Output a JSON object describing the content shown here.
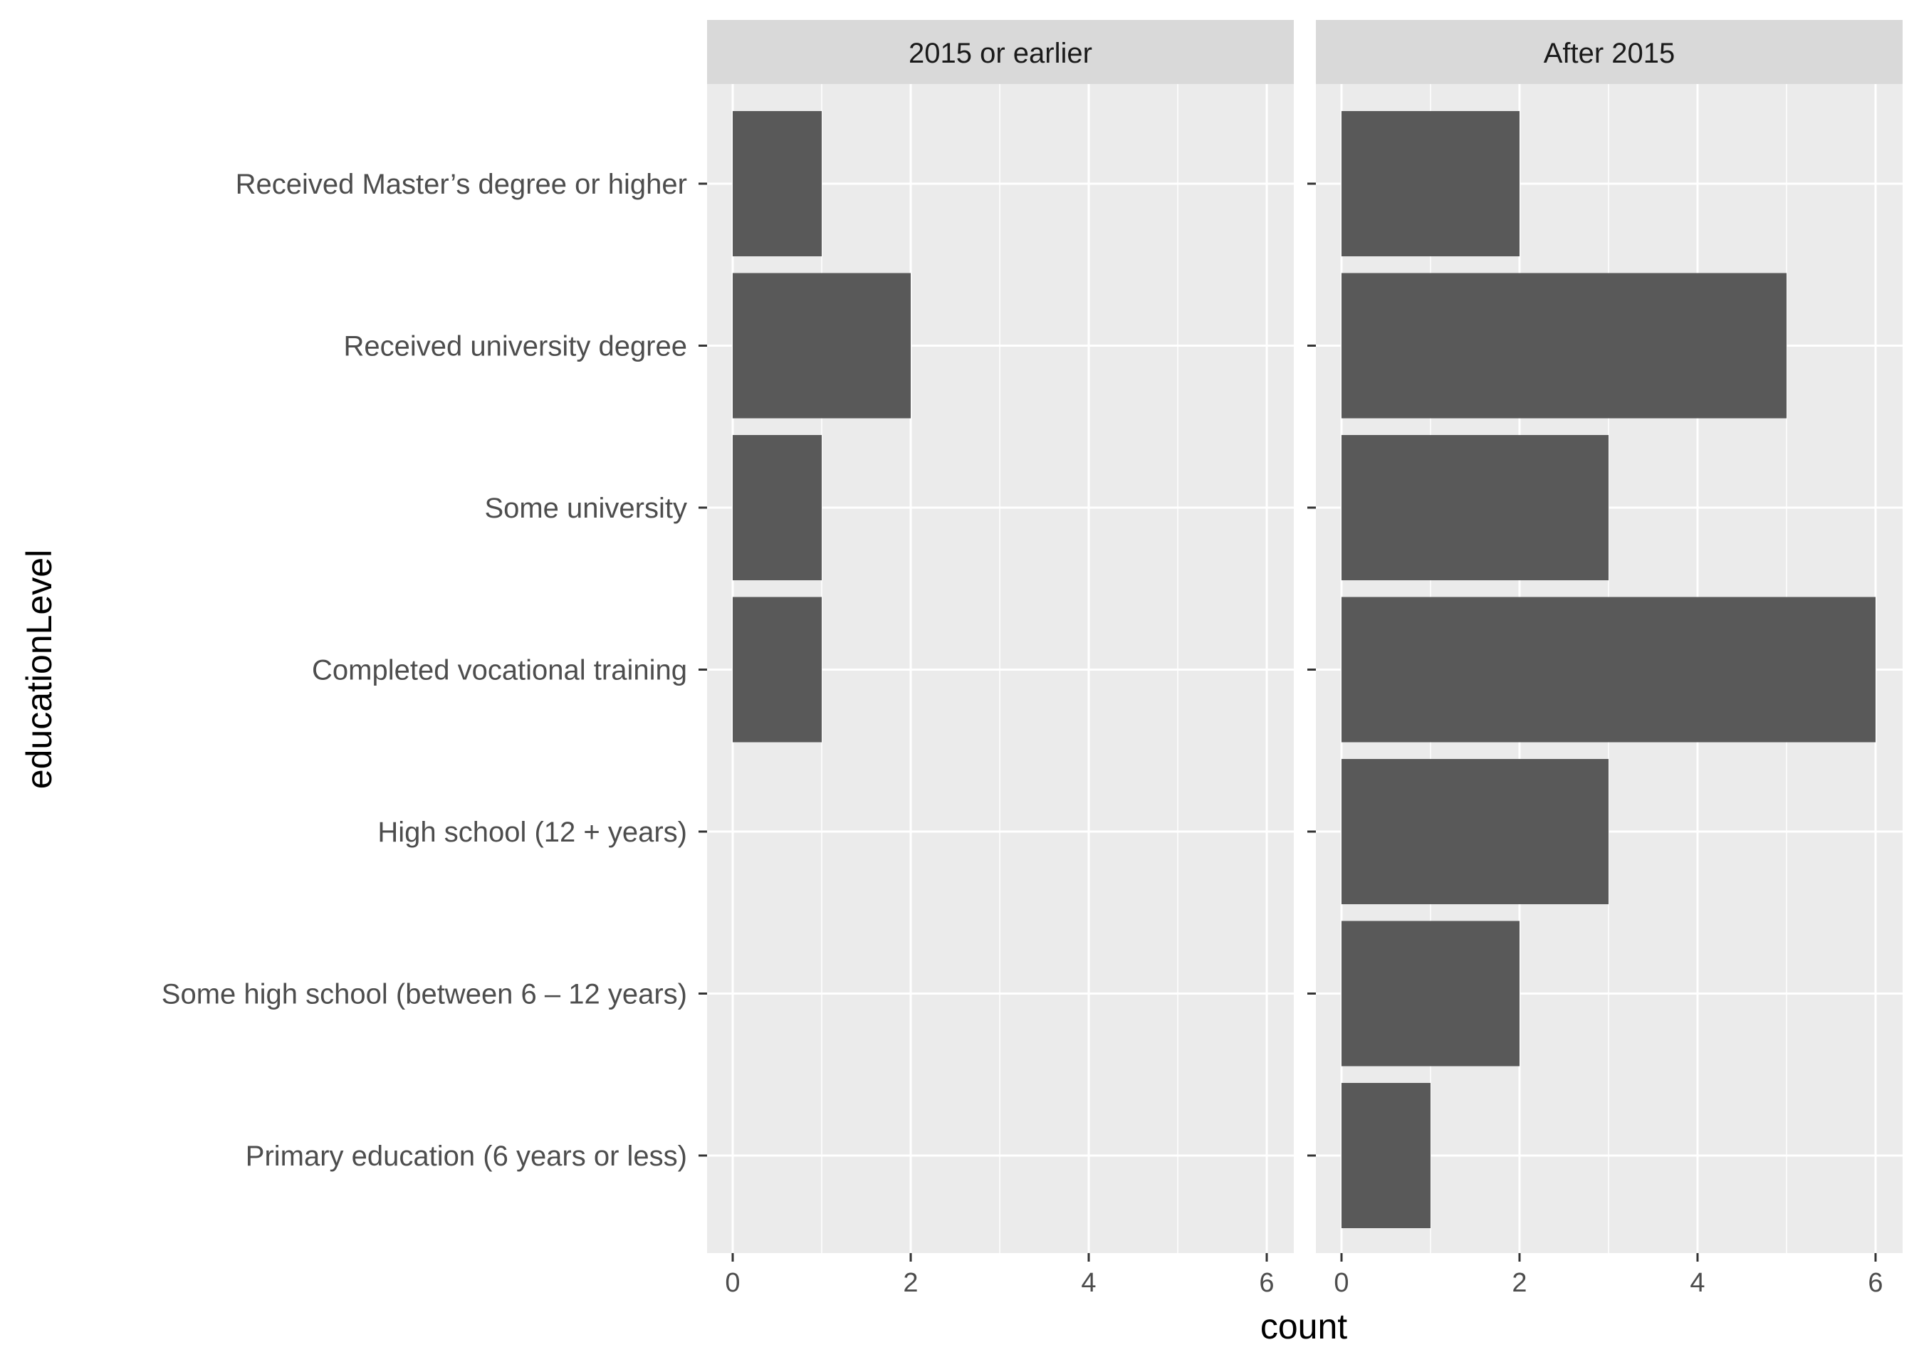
{
  "chart_data": {
    "type": "bar",
    "orientation": "horizontal",
    "facet_by": "period",
    "xlabel": "count",
    "ylabel": "educationLevel",
    "xlim": [
      0,
      6
    ],
    "x_ticks": [
      0,
      2,
      4,
      6
    ],
    "grid": true,
    "categories": [
      "Received Master’s degree or higher",
      "Received university degree",
      "Some university",
      "Completed vocational training",
      "High school (12 + years)",
      "Some high school (between 6 – 12 years)",
      "Primary education (6 years or less)"
    ],
    "panels": [
      {
        "label": "2015 or earlier",
        "values": [
          1,
          2,
          1,
          1,
          0,
          0,
          0
        ]
      },
      {
        "label": "After 2015",
        "values": [
          2,
          5,
          3,
          6,
          3,
          2,
          1
        ]
      }
    ]
  },
  "colors": {
    "panel_background": "#ebebeb",
    "strip_background": "#d9d9d9",
    "bar_fill": "#595959",
    "grid_line": "#ffffff",
    "tick_mark": "#333333"
  }
}
